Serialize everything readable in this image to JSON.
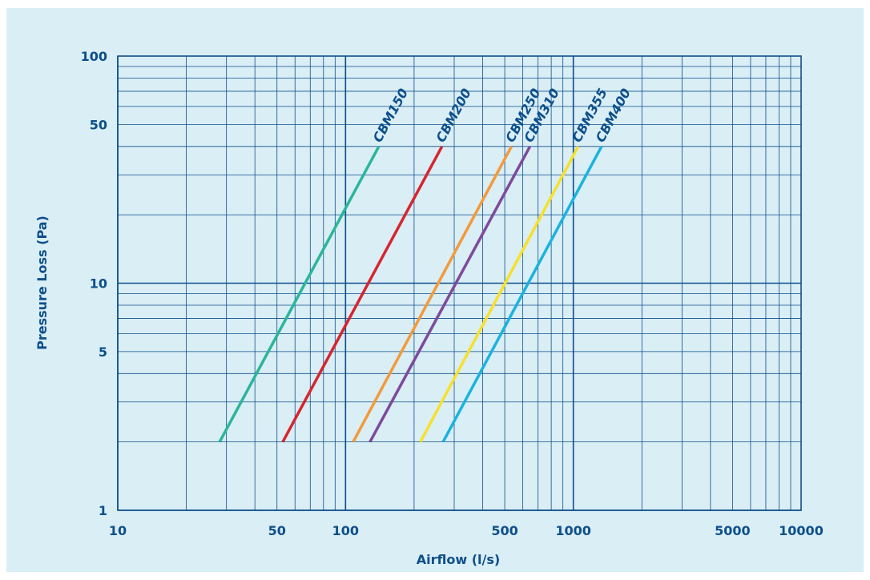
{
  "chart_data": {
    "type": "line",
    "xlabel": "Airflow (l/s)",
    "ylabel": "Pressure Loss (Pa)",
    "xscale": "log",
    "yscale": "log",
    "xlim": [
      10,
      10000
    ],
    "ylim": [
      1,
      100
    ],
    "grid": true,
    "x_ticks": [
      10,
      50,
      100,
      500,
      1000,
      5000,
      10000
    ],
    "x_tick_labels": [
      "10",
      "50",
      "100",
      "500",
      "1000",
      "5000",
      "10000"
    ],
    "y_ticks": [
      1,
      5,
      10,
      50,
      100
    ],
    "y_tick_labels": [
      "1",
      "5",
      "10",
      "50",
      "100"
    ],
    "series": [
      {
        "name": "CBM150",
        "color": "#2bb59a",
        "x": [
          28,
          140
        ],
        "y": [
          2,
          40
        ]
      },
      {
        "name": "CBM200",
        "color": "#d6252e",
        "x": [
          53,
          265
        ],
        "y": [
          2,
          40
        ]
      },
      {
        "name": "CBM250",
        "color": "#f39a3a",
        "x": [
          108,
          535
        ],
        "y": [
          2,
          40
        ]
      },
      {
        "name": "CBM310",
        "color": "#7d4a9c",
        "x": [
          128,
          645
        ],
        "y": [
          2,
          40
        ]
      },
      {
        "name": "CBM355",
        "color": "#f7e02b",
        "x": [
          213,
          1050
        ],
        "y": [
          2,
          40
        ]
      },
      {
        "name": "CBM400",
        "color": "#1ab3e0",
        "x": [
          268,
          1330
        ],
        "y": [
          2,
          40
        ]
      }
    ]
  }
}
